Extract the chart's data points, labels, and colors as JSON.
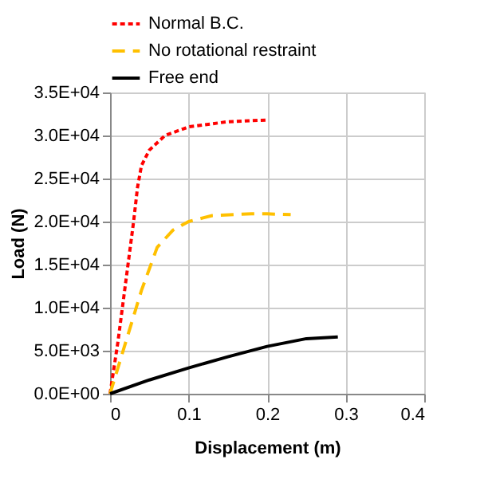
{
  "chart_data": {
    "type": "line",
    "xlabel": "Displacement (m)",
    "ylabel": "Load (N)",
    "xlim": [
      0,
      0.4
    ],
    "xticks": [
      0,
      0.1,
      0.2,
      0.3,
      0.4
    ],
    "ylim": [
      0,
      35000
    ],
    "yticks": [
      {
        "value": 0,
        "label": "0.0E+00"
      },
      {
        "value": 5000,
        "label": "5.0E+03"
      },
      {
        "value": 10000,
        "label": "1.0E+04"
      },
      {
        "value": 15000,
        "label": "1.5E+04"
      },
      {
        "value": 20000,
        "label": "2.0E+04"
      },
      {
        "value": 25000,
        "label": "2.5E+04"
      },
      {
        "value": 30000,
        "label": "3.0E+04"
      },
      {
        "value": 35000,
        "label": "3.5E+04"
      }
    ],
    "grid": true,
    "legend": "top",
    "marker": "none",
    "series": [
      {
        "name": "Normal B.C.",
        "color": "#ff0000",
        "line_style": "dotted",
        "x": [
          0,
          0.01,
          0.02,
          0.03,
          0.035,
          0.04,
          0.05,
          0.07,
          0.1,
          0.15,
          0.2
        ],
        "values": [
          0,
          6000,
          13000,
          20000,
          24000,
          26500,
          28300,
          30000,
          31000,
          31600,
          31800
        ]
      },
      {
        "name": "No rotational restraint",
        "color": "#ffc000",
        "line_style": "dashed",
        "x": [
          0,
          0.02,
          0.04,
          0.06,
          0.08,
          0.1,
          0.13,
          0.18,
          0.2,
          0.23
        ],
        "values": [
          0,
          6000,
          12000,
          17000,
          19000,
          20000,
          20700,
          20900,
          20900,
          20800
        ]
      },
      {
        "name": "Free end",
        "color": "#000000",
        "line_style": "solid",
        "x": [
          0,
          0.05,
          0.1,
          0.15,
          0.2,
          0.25,
          0.29
        ],
        "values": [
          0,
          1600,
          3000,
          4300,
          5500,
          6400,
          6600
        ]
      }
    ]
  }
}
